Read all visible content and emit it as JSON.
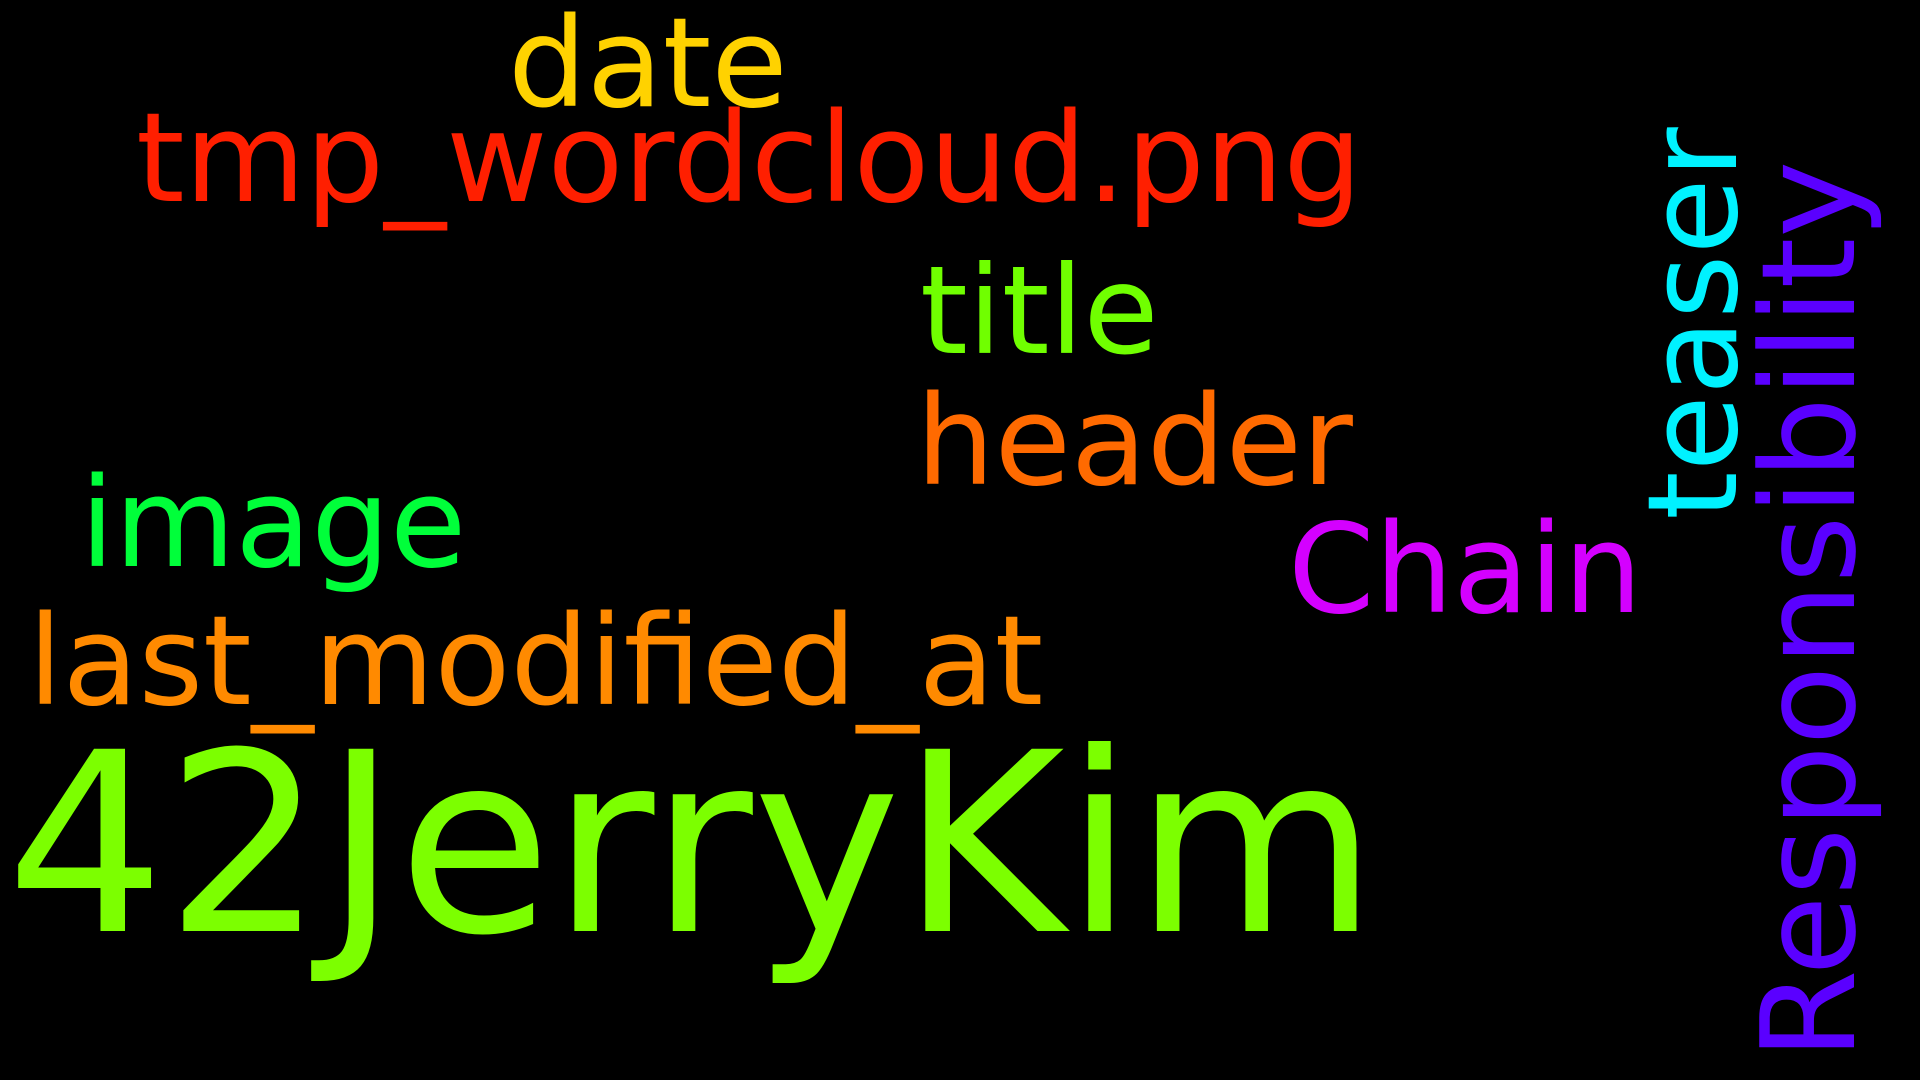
{
  "words": {
    "date": {
      "text": "date",
      "color": "#FFD200"
    },
    "tmp_wordcloud": {
      "text": "tmp_wordcloud.png",
      "color": "#FF1F00"
    },
    "title": {
      "text": "title",
      "color": "#70FF00"
    },
    "header": {
      "text": "header",
      "color": "#FF6A00"
    },
    "image": {
      "text": "image",
      "color": "#00FF3A"
    },
    "chain": {
      "text": "Chain",
      "color": "#D400FF"
    },
    "last_modified_at": {
      "text": "last_modified_at",
      "color": "#FF8A00"
    },
    "jerrykim": {
      "text": "42JerryKim",
      "color": "#7CFF00"
    },
    "teaser": {
      "text": "teaser",
      "color": "#00F2FF"
    },
    "responsibility": {
      "text": "Responsibility",
      "color": "#5A00FF"
    }
  }
}
